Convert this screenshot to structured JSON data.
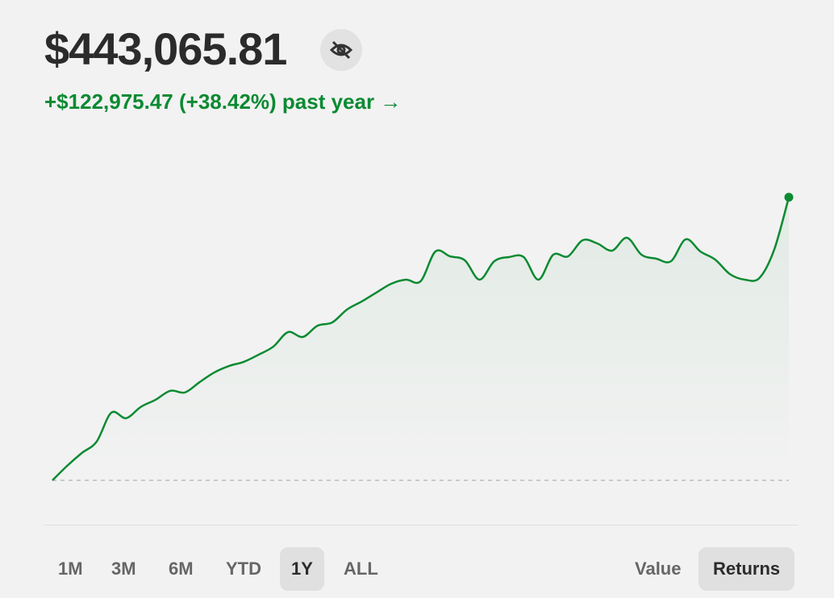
{
  "header": {
    "balance": "$443,065.81",
    "change": "+$122,975.47 (+38.42%) past year →"
  },
  "chart_data": {
    "type": "line",
    "color": "#0b8a32",
    "values": [
      0,
      6300,
      11900,
      16800,
      29400,
      27000,
      31900,
      35000,
      38900,
      38200,
      42700,
      46900,
      49700,
      51500,
      54600,
      58100,
      64400,
      62300,
      67200,
      68600,
      74200,
      77700,
      81600,
      85400,
      87200,
      86500,
      99400,
      97300,
      95600,
      87200,
      95200,
      97000,
      97000,
      87200,
      98000,
      97300,
      104300,
      102900,
      99800,
      105400,
      98000,
      96300,
      95200,
      104700,
      99400,
      95900,
      89600,
      87200,
      87900,
      100100,
      122975.47
    ],
    "ylim": [
      0,
      125000
    ]
  },
  "ranges": [
    "1M",
    "3M",
    "6M",
    "YTD",
    "1Y",
    "ALL"
  ],
  "selected_range": 4,
  "modes": [
    "Value",
    "Returns"
  ],
  "selected_mode": 1
}
